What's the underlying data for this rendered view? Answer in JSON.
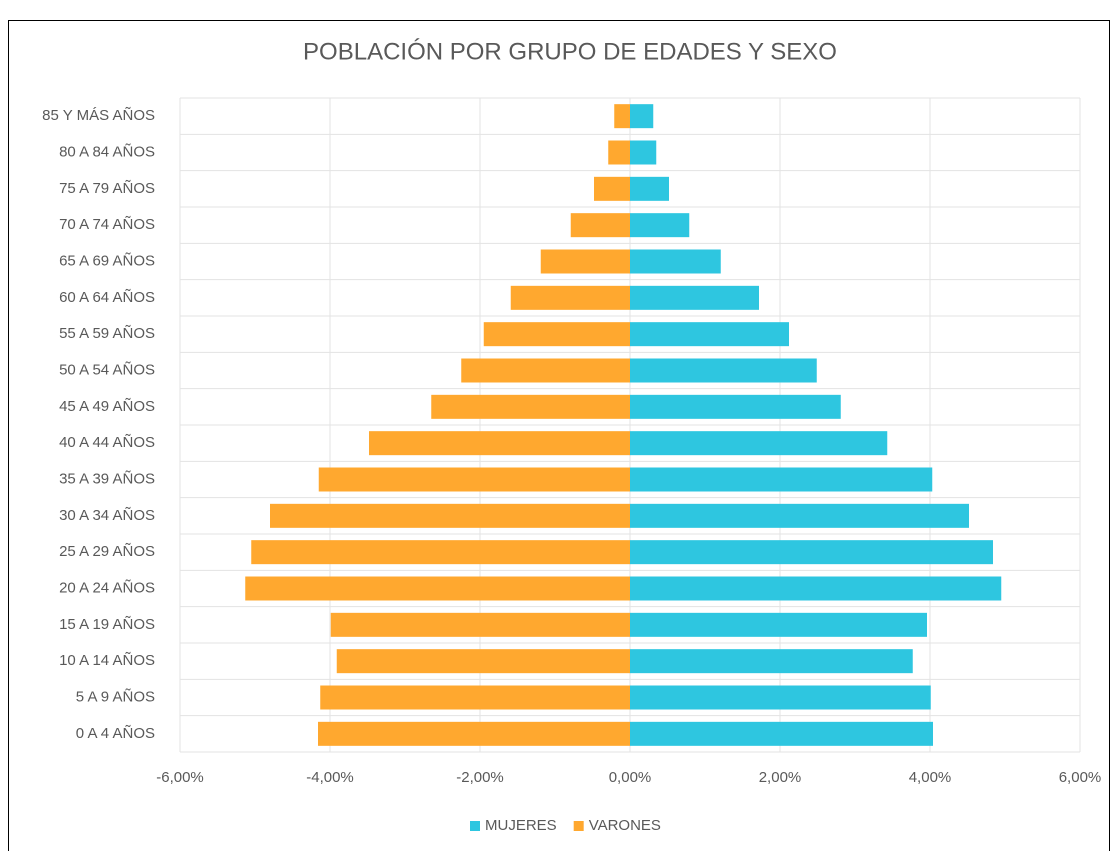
{
  "chart_data": {
    "type": "pyramid",
    "title": "POBLACIÓN POR GRUPO DE EDADES Y SEXO",
    "categories": [
      "0 A 4 AÑOS",
      "5 A 9 AÑOS",
      "10 A 14 AÑOS",
      "15 A 19 AÑOS",
      "20 A 24 AÑOS",
      "25 A 29 AÑOS",
      "30 A 34 AÑOS",
      "35 A 39 AÑOS",
      "40 A 44 AÑOS",
      "45 A 49 AÑOS",
      "50 A 54 AÑOS",
      "55 A 59 AÑOS",
      "60 A 64 AÑOS",
      "65 A 69 AÑOS",
      "70 A 74 AÑOS",
      "75 A 79 AÑOS",
      "80 A 84 AÑOS",
      "85 Y MÁS AÑOS"
    ],
    "series": [
      {
        "name": "MUJERES",
        "color": "#2ec6e0",
        "values": [
          4.04,
          4.01,
          3.77,
          3.96,
          4.95,
          4.84,
          4.52,
          4.03,
          3.43,
          2.81,
          2.49,
          2.12,
          1.72,
          1.21,
          0.79,
          0.52,
          0.35,
          0.31
        ]
      },
      {
        "name": "VARONES",
        "color": "#ffa82f",
        "values": [
          -4.16,
          -4.13,
          -3.91,
          -3.99,
          -5.13,
          -5.05,
          -4.8,
          -4.15,
          -3.48,
          -2.65,
          -2.25,
          -1.95,
          -1.59,
          -1.19,
          -0.79,
          -0.48,
          -0.29,
          -0.21
        ]
      }
    ],
    "xlim": [
      -6,
      6
    ],
    "xticks": [
      {
        "value": -6,
        "label": "-6,00%"
      },
      {
        "value": -4,
        "label": "-4,00%"
      },
      {
        "value": -2,
        "label": "-2,00%"
      },
      {
        "value": 0,
        "label": "0,00%"
      },
      {
        "value": 2,
        "label": "2,00%"
      },
      {
        "value": 4,
        "label": "4,00%"
      },
      {
        "value": 6,
        "label": "6,00%"
      }
    ],
    "grid": true,
    "legend": "bottom"
  }
}
